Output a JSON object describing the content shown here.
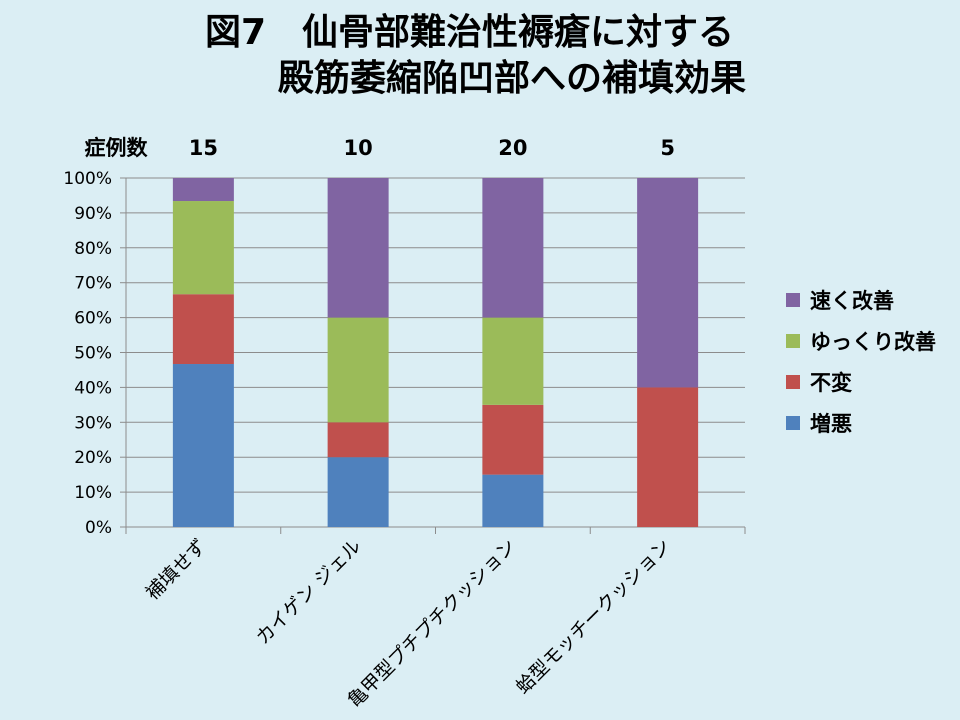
{
  "title_line1": "図7　仙骨部難治性褥瘡に対する",
  "title_line2": "殿筋萎縮陥凹部への補填効果",
  "chart_data": {
    "type": "bar",
    "stacked": true,
    "percent": true,
    "categories": [
      "補填せず",
      "カイゲン ジェル",
      "亀甲型プチプチクッション",
      "蛤型モッチークッション"
    ],
    "counts_label": "症例数",
    "counts": [
      "15",
      "10",
      "20",
      "5"
    ],
    "series": [
      {
        "name": "増悪",
        "color": "#4f81bd",
        "values": [
          46.7,
          20,
          15,
          0
        ]
      },
      {
        "name": "不変",
        "color": "#c0504d",
        "values": [
          20,
          10,
          20,
          40
        ]
      },
      {
        "name": "ゆっくり改善",
        "color": "#9bbb59",
        "values": [
          26.7,
          30,
          25,
          0
        ]
      },
      {
        "name": "速く改善",
        "color": "#8064a2",
        "values": [
          6.6,
          40,
          40,
          60
        ]
      }
    ],
    "yticks": [
      "0%",
      "10%",
      "20%",
      "30%",
      "40%",
      "50%",
      "60%",
      "70%",
      "80%",
      "90%",
      "100%"
    ],
    "ylim": [
      0,
      100
    ],
    "legend_position": "right",
    "legend_order": [
      "速く改善",
      "ゆっくり改善",
      "不変",
      "増悪"
    ],
    "grid": true
  }
}
